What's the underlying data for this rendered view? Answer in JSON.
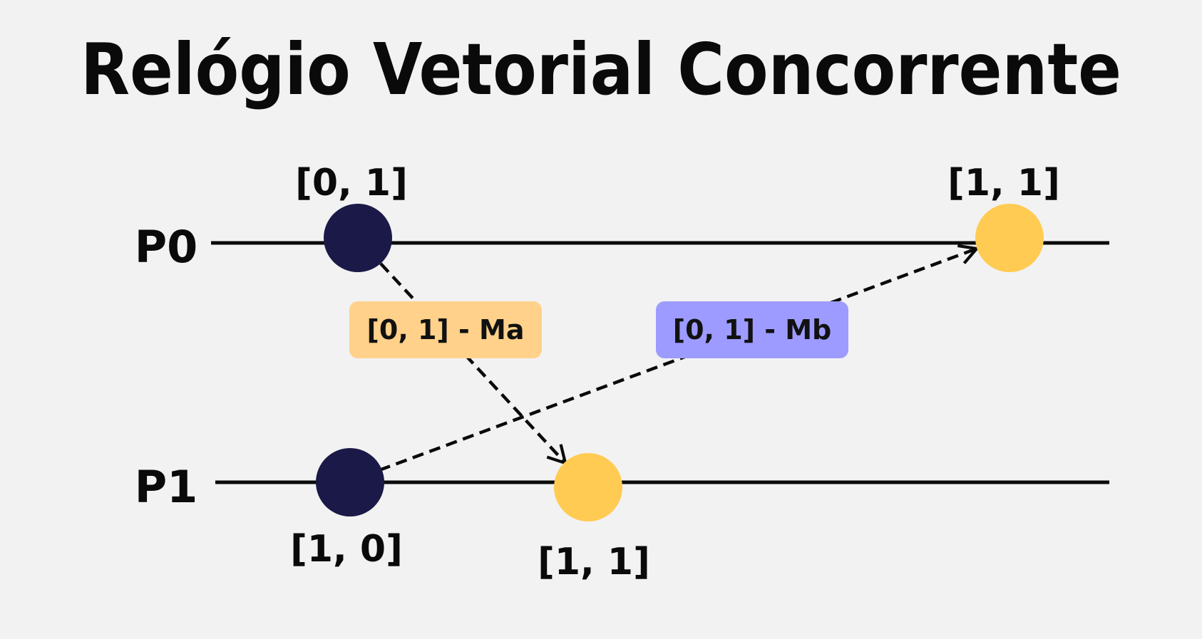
{
  "title": "Relógio Vetorial Concorrente",
  "processes": [
    {
      "label": "P0"
    },
    {
      "label": "P1"
    }
  ],
  "events": [
    {
      "process": "P0",
      "clock": "[0, 1]",
      "color": "#1a1947"
    },
    {
      "process": "P0",
      "clock": "[1, 1]",
      "color": "#ffcb52"
    },
    {
      "process": "P1",
      "clock": "[1, 0]",
      "color": "#1a1947"
    },
    {
      "process": "P1",
      "clock": "[1, 1]",
      "color": "#ffcb52"
    }
  ],
  "messages": [
    {
      "label": "[0, 1] - Ma",
      "color": "#ffd18a"
    },
    {
      "label": "[0, 1] - Mb",
      "color": "#9d9bff"
    }
  ],
  "colors": {
    "background": "#f2f2f2",
    "line": "#0a0a0a",
    "send_event": "#1a1947",
    "receive_event": "#ffcb52"
  }
}
